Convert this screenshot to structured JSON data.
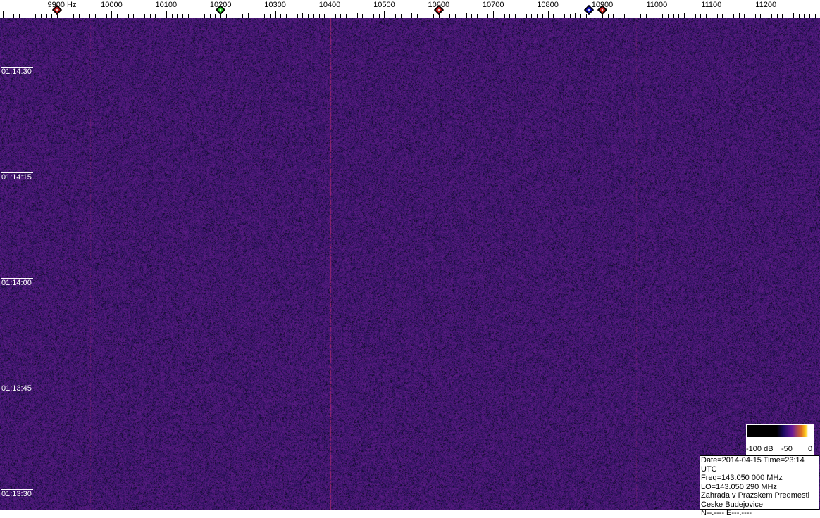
{
  "frequency_axis": {
    "unit_label": "9900 Hz",
    "labels": [
      "10000",
      "10100",
      "10200",
      "10300",
      "10400",
      "10500",
      "10600",
      "10700",
      "10800",
      "10900",
      "11000",
      "11100",
      "11200"
    ],
    "start_hz": 9900,
    "step_hz": 100
  },
  "markers": [
    {
      "freq_hz": 9900,
      "color": "#d42020"
    },
    {
      "freq_hz": 10200,
      "color": "#30d030"
    },
    {
      "freq_hz": 10600,
      "color": "#d42020"
    },
    {
      "freq_hz": 10875,
      "color": "#1010d0"
    },
    {
      "freq_hz": 10900,
      "color": "#d42020"
    }
  ],
  "time_labels": [
    "01:14:30",
    "01:14:15",
    "01:14:00",
    "01:13:45",
    "01:13:30"
  ],
  "colorbar": {
    "min_label": "-100 dB",
    "mid_label": "-50",
    "max_label": "0"
  },
  "info": {
    "line1": "Date=2014-04-15 Time=23:14 UTC",
    "line2": "Freq=143.050 000 MHz",
    "line3": "LO=143.050 290 MHz",
    "line4": "Zahrada v Prazskem Predmesti",
    "line5": "Ceske Budejovice",
    "line6": "N--.---- E---.----"
  },
  "colors": {
    "background": "#2a1a6e",
    "signal_line": "#b03070"
  }
}
